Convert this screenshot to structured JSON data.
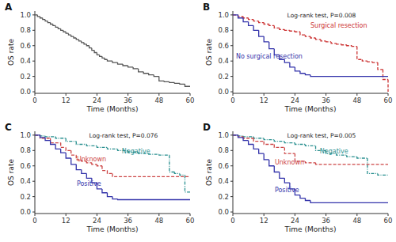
{
  "chart_data": [
    {
      "type": "step",
      "title": "A",
      "xlabel": "Time (Months)",
      "ylabel": "OS rate",
      "xlim": [
        0,
        60
      ],
      "ylim": [
        -0.02,
        1.05
      ],
      "xticks": [
        0,
        12,
        24,
        36,
        48,
        60
      ],
      "yticks": [
        {
          "value": 0.0,
          "label": "0.0"
        },
        0.2,
        0.4,
        0.6,
        0.8,
        {
          "value": 1.0,
          "label": "1.0"
        }
      ],
      "grid": false,
      "series": [
        {
          "color": "#555555",
          "line_style": "solid",
          "x": [
            0,
            1,
            2,
            3,
            4,
            5,
            6,
            7,
            8,
            9,
            10,
            11,
            12,
            13,
            14,
            15,
            16,
            17,
            18,
            19,
            20,
            21,
            22,
            23,
            24,
            25,
            26,
            27,
            28,
            30,
            32,
            34,
            36,
            38,
            40,
            42,
            44,
            46,
            48,
            50,
            52,
            54,
            56,
            58,
            60
          ],
          "values": [
            1.0,
            0.98,
            0.96,
            0.94,
            0.92,
            0.9,
            0.88,
            0.86,
            0.84,
            0.82,
            0.8,
            0.78,
            0.76,
            0.74,
            0.72,
            0.7,
            0.68,
            0.66,
            0.64,
            0.62,
            0.6,
            0.57,
            0.54,
            0.51,
            0.48,
            0.46,
            0.44,
            0.42,
            0.4,
            0.38,
            0.36,
            0.34,
            0.32,
            0.3,
            0.26,
            0.24,
            0.22,
            0.2,
            0.14,
            0.13,
            0.12,
            0.11,
            0.1,
            0.07,
            0.07
          ]
        }
      ]
    },
    {
      "type": "step",
      "title": "B",
      "xlabel": "Time (Months)",
      "ylabel": "OS rate",
      "xlim": [
        0,
        60
      ],
      "ylim": [
        -0.02,
        1.05
      ],
      "xticks": [
        0,
        12,
        24,
        36,
        48,
        60
      ],
      "yticks": [
        {
          "value": 0.0,
          "label": "0.0"
        },
        0.2,
        0.4,
        0.6,
        0.8,
        {
          "value": 1.0,
          "label": "1.0"
        }
      ],
      "grid": false,
      "annotations": [
        "Log-rank test, P=0.008"
      ],
      "series": [
        {
          "name": "Surgical resection",
          "color": "#cc3333",
          "line_style": "dashed",
          "x": [
            0,
            2,
            4,
            6,
            8,
            10,
            12,
            14,
            16,
            18,
            20,
            22,
            24,
            26,
            28,
            30,
            32,
            34,
            36,
            38,
            40,
            42,
            44,
            46,
            48,
            50,
            52,
            54,
            56,
            58,
            60
          ],
          "values": [
            1.0,
            0.98,
            0.96,
            0.94,
            0.92,
            0.9,
            0.88,
            0.86,
            0.83,
            0.81,
            0.8,
            0.79,
            0.78,
            0.74,
            0.72,
            0.7,
            0.68,
            0.66,
            0.65,
            0.63,
            0.62,
            0.61,
            0.6,
            0.59,
            0.42,
            0.4,
            0.39,
            0.38,
            0.29,
            0.16,
            0.0
          ]
        },
        {
          "name": "No surgical resection",
          "color": "#3333aa",
          "line_style": "solid",
          "x": [
            0,
            2,
            4,
            6,
            8,
            10,
            12,
            14,
            16,
            18,
            20,
            22,
            24,
            26,
            28,
            30,
            60
          ],
          "values": [
            1.0,
            0.96,
            0.91,
            0.86,
            0.8,
            0.72,
            0.65,
            0.56,
            0.48,
            0.42,
            0.38,
            0.32,
            0.27,
            0.24,
            0.22,
            0.2,
            0.2
          ]
        }
      ]
    },
    {
      "type": "step",
      "title": "C",
      "xlabel": "Time (Months)",
      "ylabel": "OS rate",
      "xlim": [
        0,
        60
      ],
      "ylim": [
        -0.02,
        1.05
      ],
      "xticks": [
        0,
        12,
        24,
        36,
        48,
        60
      ],
      "yticks": [
        {
          "value": 0.0,
          "label": "0.0"
        },
        0.2,
        0.4,
        0.6,
        0.8,
        {
          "value": 1.0,
          "label": "1.0"
        }
      ],
      "grid": false,
      "annotations": [
        "Log-rank test, P=0.076"
      ],
      "series": [
        {
          "name": "Negative",
          "color": "#2a9090",
          "line_style": "dashdot",
          "x": [
            0,
            2,
            4,
            8,
            12,
            16,
            20,
            24,
            28,
            32,
            36,
            40,
            44,
            48,
            52,
            54,
            56,
            58,
            60
          ],
          "values": [
            1.0,
            0.99,
            0.98,
            0.96,
            0.92,
            0.88,
            0.86,
            0.84,
            0.82,
            0.8,
            0.78,
            0.76,
            0.75,
            0.74,
            0.52,
            0.5,
            0.48,
            0.26,
            0.26
          ]
        },
        {
          "name": "Unknown",
          "color": "#cc4444",
          "line_style": "dashed",
          "x": [
            0,
            2,
            6,
            10,
            12,
            14,
            16,
            18,
            20,
            22,
            24,
            26,
            28,
            30,
            60
          ],
          "values": [
            1.0,
            0.96,
            0.9,
            0.84,
            0.8,
            0.74,
            0.68,
            0.66,
            0.64,
            0.62,
            0.6,
            0.54,
            0.5,
            0.46,
            0.46
          ]
        },
        {
          "name": "Positive",
          "color": "#3333aa",
          "line_style": "solid",
          "x": [
            0,
            2,
            4,
            6,
            8,
            10,
            12,
            14,
            16,
            18,
            20,
            22,
            24,
            26,
            28,
            30,
            32,
            60
          ],
          "values": [
            1.0,
            0.97,
            0.93,
            0.88,
            0.82,
            0.77,
            0.7,
            0.62,
            0.55,
            0.5,
            0.44,
            0.38,
            0.3,
            0.25,
            0.2,
            0.17,
            0.16,
            0.16
          ]
        }
      ]
    },
    {
      "type": "step",
      "title": "D",
      "xlabel": "Time (Months)",
      "ylabel": "OS rate",
      "xlim": [
        0,
        60
      ],
      "ylim": [
        -0.02,
        1.05
      ],
      "xticks": [
        0,
        12,
        24,
        36,
        48,
        60
      ],
      "yticks": [
        {
          "value": 0.0,
          "label": "0.0"
        },
        0.2,
        0.4,
        0.6,
        0.8,
        {
          "value": 1.0,
          "label": "1.0"
        }
      ],
      "grid": false,
      "annotations": [
        "Log-rank test, P=0.005"
      ],
      "series": [
        {
          "name": "Negative",
          "color": "#2a9090",
          "line_style": "dashdot",
          "x": [
            0,
            2,
            4,
            8,
            12,
            16,
            20,
            24,
            28,
            32,
            36,
            40,
            44,
            48,
            52,
            56,
            60
          ],
          "values": [
            1.0,
            0.99,
            0.98,
            0.96,
            0.94,
            0.92,
            0.9,
            0.88,
            0.86,
            0.8,
            0.76,
            0.74,
            0.72,
            0.7,
            0.5,
            0.48,
            0.48
          ]
        },
        {
          "name": "Unknown",
          "color": "#cc4444",
          "line_style": "dashed",
          "x": [
            0,
            2,
            4,
            8,
            12,
            16,
            20,
            24,
            28,
            32,
            60
          ],
          "values": [
            1.0,
            0.98,
            0.96,
            0.92,
            0.88,
            0.84,
            0.76,
            0.66,
            0.64,
            0.62,
            0.62
          ]
        },
        {
          "name": "Positive",
          "color": "#3333aa",
          "line_style": "solid",
          "x": [
            0,
            2,
            4,
            6,
            8,
            10,
            12,
            14,
            16,
            18,
            20,
            22,
            24,
            26,
            28,
            30,
            60
          ],
          "values": [
            1.0,
            0.97,
            0.93,
            0.88,
            0.82,
            0.76,
            0.68,
            0.6,
            0.52,
            0.44,
            0.38,
            0.3,
            0.22,
            0.18,
            0.15,
            0.12,
            0.12
          ]
        }
      ]
    }
  ]
}
